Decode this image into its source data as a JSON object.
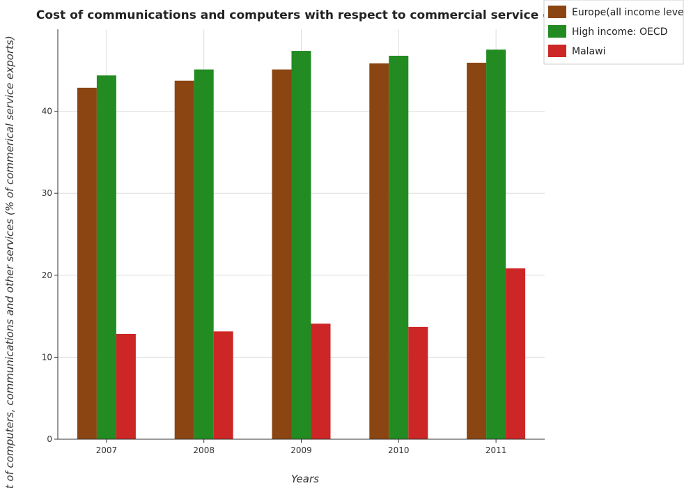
{
  "chart_data": {
    "type": "bar",
    "title": "Cost of communications and computers with respect to commercial service exports",
    "xlabel": "Years",
    "ylabel": "Cost of computers, communications and other services (% of commerical service exports)",
    "categories": [
      "2007",
      "2008",
      "2009",
      "2010",
      "2011"
    ],
    "series": [
      {
        "name": "Europe(all income levels)",
        "color": "#8b4513",
        "values": [
          42.87,
          43.73,
          45.1,
          45.84,
          45.92
        ]
      },
      {
        "name": "High income: OECD",
        "color": "#228b22",
        "values": [
          44.37,
          45.1,
          47.36,
          46.77,
          47.52
        ]
      },
      {
        "name": "Malawi",
        "color": "#cd2626",
        "values": [
          12.84,
          13.15,
          14.09,
          13.7,
          20.84
        ]
      }
    ],
    "ylim": [
      0,
      50
    ],
    "yticks": [
      0,
      10,
      20,
      30,
      40
    ],
    "grid": true,
    "legend_position": "top-right"
  }
}
